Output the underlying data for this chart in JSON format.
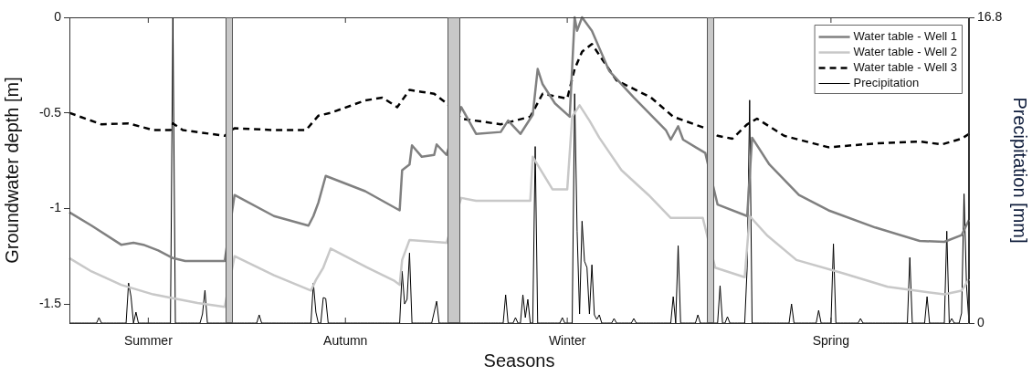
{
  "chart_data": {
    "type": "line",
    "xlabel": "Seasons",
    "ylabel": "Groundwater depth [m]",
    "y2label": "Precipitation [mm]",
    "ylim": [
      -1.6,
      0
    ],
    "yticks": [
      -1.5,
      -1,
      -0.5,
      0
    ],
    "y2lim": [
      0,
      16.8
    ],
    "y2ticks": [
      0,
      16.8
    ],
    "legend": "top right",
    "categories": [
      null,
      null,
      null,
      null,
      null,
      null,
      null,
      null,
      null,
      null,
      null,
      null,
      null,
      null,
      null,
      null,
      null,
      null,
      null,
      null,
      null,
      null,
      null,
      null,
      null,
      null,
      null,
      null,
      null,
      null,
      null,
      null,
      "Summer",
      null,
      null,
      null,
      null,
      null,
      null,
      null,
      null,
      null,
      null,
      null,
      null,
      null,
      null,
      null,
      null,
      null,
      null,
      null,
      null,
      null,
      null,
      null,
      null,
      null,
      null,
      null,
      null,
      null,
      null,
      null,
      null,
      null,
      null,
      null,
      null,
      null,
      null,
      null,
      null,
      null,
      null,
      null,
      null,
      null,
      null,
      null,
      null,
      null,
      null,
      null,
      null,
      null,
      null,
      null,
      null,
      null,
      null,
      null,
      null,
      null,
      null,
      null,
      null,
      null,
      null,
      null,
      null,
      null,
      null,
      null,
      null,
      null,
      null,
      null,
      null,
      null,
      null,
      null,
      "Autumn",
      null,
      null,
      null,
      null,
      null,
      null,
      null,
      null,
      null,
      null,
      null,
      null,
      null,
      null,
      null,
      null,
      null,
      null,
      null,
      null,
      null,
      null,
      null,
      null,
      null,
      null,
      null,
      null,
      null,
      null,
      null,
      null,
      null,
      null,
      null,
      null,
      null,
      null,
      null,
      null,
      null,
      null,
      null,
      null,
      null,
      null,
      null,
      null,
      null,
      null,
      null,
      null,
      null,
      null,
      null,
      null,
      null,
      null,
      null,
      null,
      null,
      null,
      null,
      null,
      null,
      null,
      null,
      null,
      null,
      null,
      null,
      null,
      null,
      null,
      null,
      null,
      null,
      null,
      null,
      null,
      null,
      null,
      null,
      null,
      null,
      null,
      null,
      null,
      null,
      "Winter",
      null,
      null,
      null,
      null,
      null,
      null,
      null,
      null,
      null,
      null,
      null,
      null,
      null,
      null,
      null,
      null,
      null,
      null,
      null,
      null,
      null,
      null,
      null,
      null,
      null,
      null,
      null,
      null,
      null,
      null,
      null,
      null,
      null,
      null,
      null,
      null,
      null,
      null,
      null,
      null,
      null,
      null,
      null,
      null,
      null,
      null,
      null,
      null,
      null,
      null,
      null,
      null,
      null,
      null,
      null,
      null,
      null,
      null,
      null,
      null,
      null,
      null,
      null,
      null,
      null,
      null,
      null,
      null,
      null,
      null,
      null,
      null,
      null,
      null,
      null,
      null,
      null,
      null,
      null,
      null,
      null,
      null,
      null,
      null,
      null,
      null,
      null,
      null,
      null,
      null,
      null,
      null,
      null,
      null,
      null,
      null,
      null,
      null,
      null,
      null,
      null,
      null,
      null,
      null,
      null,
      null,
      "Spring",
      null,
      null,
      null,
      null,
      null,
      null,
      null,
      null,
      null,
      null,
      null,
      null,
      null,
      null,
      null,
      null,
      null,
      null,
      null,
      null,
      null,
      null,
      null,
      null,
      null,
      null,
      null,
      null,
      null,
      null,
      null,
      null,
      null,
      null,
      null,
      null,
      null,
      null,
      null,
      null,
      null,
      null,
      null,
      null,
      null,
      null,
      null,
      null,
      null,
      null,
      null,
      null,
      null,
      null,
      null,
      null
    ],
    "series": [
      {
        "name": "Water table - Well 1",
        "color": "#808080",
        "values": [
          -1.02,
          null,
          null,
          null,
          null,
          null,
          null,
          null,
          null,
          -1.09,
          null,
          null,
          null,
          null,
          null,
          null,
          null,
          null,
          null,
          null,
          null,
          -1.19,
          null,
          null,
          null,
          null,
          -1.18,
          null,
          null,
          null,
          -1.19,
          null,
          null,
          null,
          null,
          null,
          -1.22,
          null,
          null,
          null,
          null,
          null,
          -1.26,
          null,
          null,
          null,
          null,
          -1.275,
          null,
          null,
          null,
          null,
          null,
          null,
          null,
          null,
          null,
          null,
          null,
          null,
          null,
          null,
          null,
          -1.275,
          null,
          null,
          null,
          -0.93,
          null,
          null,
          null,
          null,
          null,
          null,
          null,
          null,
          null,
          null,
          null,
          null,
          null,
          null,
          null,
          -1.04,
          null,
          null,
          null,
          null,
          null,
          null,
          null,
          null,
          null,
          null,
          null,
          null,
          null,
          -1.09,
          null,
          -1.04,
          null,
          -0.97,
          null,
          null,
          -0.83,
          null,
          null,
          null,
          null,
          null,
          null,
          null,
          null,
          null,
          null,
          null,
          null,
          null,
          null,
          null,
          -0.91,
          null,
          null,
          null,
          null,
          null,
          null,
          null,
          null,
          null,
          null,
          null,
          null,
          null,
          -1.01,
          -0.8,
          null,
          null,
          -0.77,
          -0.67,
          null,
          null,
          null,
          -0.73,
          null,
          null,
          null,
          null,
          -0.72,
          -0.665,
          null,
          null,
          null,
          -0.72,
          null,
          null,
          null,
          null,
          null,
          -0.47,
          null,
          null,
          null,
          null,
          null,
          -0.61,
          null,
          null,
          null,
          null,
          null,
          null,
          null,
          null,
          null,
          -0.6,
          null,
          null,
          -0.54,
          null,
          null,
          null,
          null,
          -0.61,
          null,
          null,
          null,
          null,
          -0.51,
          null,
          -0.27,
          null,
          -0.35,
          null,
          null,
          null,
          null,
          -0.45,
          null,
          null,
          null,
          null,
          null,
          -0.52,
          null,
          0,
          -0.07,
          null,
          0,
          null,
          null,
          null,
          -0.07,
          null,
          null,
          null,
          null,
          null,
          null,
          -0.28,
          null,
          null,
          null,
          null,
          null,
          null,
          null,
          null,
          null,
          -0.42,
          null,
          null,
          null,
          null,
          null,
          null,
          null,
          null,
          null,
          null,
          null,
          null,
          -0.59,
          null,
          -0.64,
          null,
          null,
          -0.57,
          null,
          -0.64,
          null,
          null,
          null,
          null,
          null,
          null,
          null,
          null,
          -0.71,
          null,
          null,
          null,
          null,
          -0.98,
          null,
          null,
          null,
          null,
          null,
          null,
          null,
          null,
          null,
          null,
          null,
          -1.04,
          null,
          -0.63,
          null,
          null,
          null,
          null,
          null,
          null,
          -0.77,
          null,
          null,
          null,
          null,
          null,
          null,
          null,
          null,
          null,
          null,
          null,
          -0.93,
          null,
          null,
          null,
          null,
          null,
          null,
          null,
          null,
          null,
          null,
          null,
          -1.01,
          null,
          null,
          null,
          null,
          null,
          null,
          null,
          null,
          null,
          null,
          null,
          null,
          null,
          null,
          null,
          null,
          null,
          null,
          -1.1,
          null,
          null,
          null,
          null,
          null,
          null,
          null,
          null,
          null,
          null,
          null,
          null,
          null,
          null,
          null,
          null,
          null,
          -1.17,
          null,
          null,
          null,
          null,
          null,
          null,
          null,
          null,
          null,
          -1.175,
          null,
          null,
          null,
          null,
          null,
          null,
          -1.14,
          null,
          null,
          -1.06
        ]
      },
      {
        "name": "Water table - Well 2",
        "color": "#c8c8c8",
        "values": [
          -1.26,
          null,
          null,
          null,
          null,
          null,
          null,
          null,
          null,
          -1.33,
          null,
          null,
          null,
          null,
          null,
          null,
          null,
          null,
          null,
          null,
          null,
          -1.4,
          null,
          null,
          null,
          null,
          null,
          null,
          null,
          null,
          null,
          null,
          null,
          null,
          -1.45,
          null,
          null,
          null,
          null,
          null,
          null,
          null,
          -1.47,
          null,
          null,
          null,
          null,
          null,
          null,
          null,
          null,
          null,
          -1.495,
          null,
          null,
          null,
          null,
          null,
          null,
          null,
          null,
          null,
          null,
          -1.515,
          null,
          null,
          null,
          -1.25,
          null,
          null,
          null,
          null,
          null,
          null,
          null,
          null,
          null,
          null,
          null,
          null,
          null,
          null,
          null,
          -1.35,
          null,
          null,
          null,
          null,
          null,
          null,
          null,
          null,
          null,
          null,
          null,
          null,
          null,
          null,
          -1.43,
          null,
          -1.375,
          null,
          null,
          -1.31,
          null,
          null,
          -1.21,
          null,
          null,
          null,
          null,
          null,
          null,
          null,
          null,
          null,
          null,
          null,
          null,
          null,
          null,
          -1.31,
          null,
          null,
          null,
          null,
          null,
          null,
          null,
          null,
          null,
          null,
          -1.38,
          null,
          -1.4,
          -1.27,
          null,
          null,
          -1.165,
          null,
          null,
          null,
          null,
          null,
          null,
          null,
          null,
          null,
          -1.175,
          null,
          null,
          null,
          null,
          -1.18,
          null,
          null,
          null,
          null,
          null,
          -0.945,
          null,
          null,
          null,
          null,
          null,
          -0.96,
          null,
          null,
          null,
          null,
          null,
          null,
          null,
          null,
          null,
          null,
          null,
          null,
          null,
          null,
          null,
          null,
          null,
          null,
          null,
          null,
          null,
          -0.96,
          -0.73,
          null,
          null,
          null,
          null,
          null,
          null,
          null,
          -0.9,
          null,
          null,
          null,
          null,
          null,
          -0.9,
          null,
          -0.52,
          null,
          null,
          -0.46,
          null,
          null,
          null,
          -0.54,
          null,
          null,
          null,
          -0.63,
          null,
          null,
          null,
          null,
          null,
          null,
          null,
          null,
          -0.8,
          null,
          null,
          null,
          null,
          null,
          null,
          null,
          null,
          null,
          null,
          -0.93,
          null,
          null,
          null,
          null,
          null,
          null,
          null,
          null,
          -1.05,
          null,
          null,
          null,
          null,
          null,
          null,
          null,
          null,
          null,
          null,
          null,
          null,
          -1.05,
          null,
          null,
          null,
          null,
          -1.31,
          null,
          null,
          null,
          null,
          null,
          null,
          null,
          null,
          null,
          null,
          null,
          -1.36,
          null,
          -1.04,
          null,
          null,
          null,
          null,
          null,
          null,
          -1.14,
          null,
          null,
          null,
          null,
          null,
          null,
          null,
          null,
          null,
          null,
          null,
          -1.27,
          null,
          null,
          null,
          null,
          null,
          null,
          null,
          null,
          null,
          null,
          null,
          null,
          null,
          null,
          null,
          null,
          null,
          null,
          -1.34,
          null,
          null,
          null,
          null,
          null,
          null,
          null,
          null,
          null,
          null,
          null,
          null,
          null,
          null,
          null,
          null,
          null,
          -1.41,
          null,
          null,
          null,
          null,
          null,
          null,
          null,
          null,
          null,
          null,
          null,
          null,
          null,
          null,
          null,
          null,
          null,
          null,
          null,
          null,
          null,
          null,
          -1.45,
          null,
          null,
          null,
          null,
          null,
          null,
          -1.43,
          null,
          null,
          -1.37
        ]
      },
      {
        "name": "Water table - Well 3",
        "color": "#000000",
        "line_style": "dashed",
        "values": [
          -0.5,
          null,
          null,
          null,
          null,
          null,
          null,
          null,
          null,
          null,
          null,
          null,
          null,
          -0.56,
          null,
          null,
          null,
          null,
          null,
          null,
          null,
          null,
          null,
          null,
          -0.555,
          null,
          null,
          null,
          null,
          null,
          null,
          null,
          null,
          null,
          -0.59,
          null,
          null,
          null,
          null,
          null,
          null,
          -0.59,
          -0.555,
          null,
          null,
          null,
          -0.59,
          null,
          null,
          null,
          null,
          null,
          null,
          null,
          null,
          null,
          null,
          null,
          null,
          null,
          null,
          null,
          null,
          -0.62,
          null,
          null,
          null,
          -0.58,
          null,
          null,
          null,
          null,
          null,
          null,
          null,
          null,
          null,
          null,
          null,
          null,
          null,
          null,
          null,
          -0.59,
          null,
          null,
          null,
          null,
          null,
          null,
          null,
          null,
          null,
          null,
          null,
          null,
          -0.59,
          null,
          null,
          null,
          null,
          -0.515,
          null,
          null,
          null,
          null,
          -0.5,
          null,
          null,
          null,
          null,
          null,
          null,
          null,
          null,
          null,
          null,
          null,
          null,
          null,
          -0.435,
          null,
          null,
          null,
          null,
          null,
          null,
          -0.42,
          null,
          null,
          null,
          null,
          null,
          -0.47,
          null,
          null,
          null,
          null,
          -0.38,
          null,
          null,
          null,
          null,
          -0.39,
          null,
          null,
          null,
          null,
          -0.4,
          null,
          null,
          null,
          null,
          -0.45,
          null,
          null,
          null,
          null,
          null,
          -0.53,
          null,
          null,
          null,
          null,
          null,
          null,
          null,
          -0.545,
          null,
          null,
          null,
          null,
          null,
          null,
          null,
          -0.56,
          null,
          null,
          null,
          null,
          null,
          null,
          null,
          null,
          null,
          null,
          null,
          -0.52,
          null,
          null,
          null,
          null,
          -0.4,
          null,
          null,
          null,
          null,
          null,
          null,
          null,
          null,
          null,
          -0.425,
          null,
          null,
          -0.27,
          null,
          null,
          -0.18,
          null,
          null,
          null,
          -0.14,
          null,
          null,
          null,
          null,
          null,
          null,
          null,
          null,
          null,
          -0.33,
          null,
          null,
          null,
          null,
          null,
          null,
          null,
          null,
          null,
          null,
          null,
          null,
          null,
          -0.42,
          null,
          null,
          null,
          null,
          null,
          null,
          null,
          null,
          -0.52,
          null,
          null,
          null,
          null,
          null,
          null,
          null,
          null,
          null,
          null,
          null,
          null,
          -0.58,
          null,
          null,
          null,
          null,
          -0.62,
          null,
          null,
          null,
          null,
          null,
          -0.635,
          null,
          null,
          null,
          null,
          null,
          -0.56,
          null,
          null,
          null,
          -0.53,
          null,
          null,
          null,
          null,
          null,
          null,
          null,
          null,
          null,
          null,
          -0.62,
          null,
          null,
          null,
          null,
          null,
          null,
          null,
          null,
          null,
          null,
          null,
          null,
          null,
          null,
          null,
          null,
          null,
          -0.68,
          null,
          null,
          null,
          null,
          null,
          null,
          null,
          null,
          null,
          null,
          null,
          null,
          null,
          null,
          null,
          null,
          null,
          null,
          -0.66,
          null,
          null,
          null,
          null,
          null,
          null,
          null,
          null,
          null,
          null,
          null,
          null,
          null,
          null,
          null,
          null,
          null,
          -0.65,
          null,
          null,
          null,
          null,
          null,
          null,
          null,
          null,
          -0.665,
          null,
          null,
          null,
          null,
          null,
          null,
          null,
          -0.635,
          null,
          null,
          -0.61
        ]
      },
      {
        "name": "Precipitation",
        "color": "#000000",
        "axis": "y2",
        "values": [
          0,
          0,
          0,
          0,
          0,
          0,
          0,
          0,
          0,
          0,
          0,
          0,
          0.3,
          0,
          0,
          0,
          0,
          0,
          0,
          0,
          0,
          0,
          0,
          0,
          2.2,
          1.45,
          0,
          0.6,
          0,
          0,
          0,
          0,
          0,
          0,
          0,
          0,
          0,
          0,
          0,
          0,
          0,
          0,
          16.8,
          0,
          0,
          0,
          0,
          0,
          0,
          0,
          0,
          0,
          0,
          0,
          0.5,
          1.8,
          0,
          0,
          0,
          0,
          0,
          0,
          0,
          0,
          null,
          null,
          null,
          0,
          0,
          0,
          0,
          0,
          0,
          0,
          0,
          0,
          0,
          0.45,
          0,
          0,
          0,
          0,
          0,
          0,
          0,
          0,
          0,
          0,
          0,
          0,
          0,
          0,
          0,
          0,
          0,
          0,
          0,
          0,
          0,
          2.2,
          0.6,
          0,
          0,
          1.4,
          1.35,
          0,
          0,
          0,
          0,
          0,
          0,
          0,
          0,
          0,
          0,
          0,
          0,
          0,
          0,
          0,
          0,
          0,
          0,
          0,
          0,
          0,
          0,
          0,
          0,
          0,
          0,
          0,
          0,
          0,
          0,
          2.85,
          1.05,
          1.3,
          3.85,
          0,
          0,
          0,
          0,
          0,
          0,
          0,
          0,
          0,
          0.6,
          1.2,
          0,
          0,
          0,
          0,
          null,
          null,
          null,
          null,
          null,
          0,
          0,
          0,
          0,
          0,
          0,
          0,
          0,
          0,
          0,
          0,
          0,
          0,
          0,
          0,
          0,
          0,
          0,
          1.55,
          0,
          0,
          0,
          0.3,
          0,
          0,
          1.55,
          0.3,
          1.3,
          0,
          0,
          9.7,
          0,
          0,
          0,
          0,
          0,
          0,
          0,
          0,
          0,
          0,
          0.3,
          0,
          0,
          0,
          0,
          12.6,
          5.05,
          0.5,
          5.6,
          3.4,
          3.05,
          0.5,
          3.2,
          0.45,
          0.2,
          0.45,
          0,
          0,
          0,
          0,
          0,
          0.25,
          0,
          0,
          0,
          0,
          0,
          0,
          0,
          0.25,
          0,
          0,
          0,
          0,
          0,
          0,
          0,
          0,
          0,
          0,
          0,
          0,
          0,
          0,
          0,
          1.45,
          0,
          4.25,
          0,
          0,
          0,
          0,
          0,
          0,
          0,
          0.45,
          0,
          0,
          0,
          null,
          null,
          null,
          null,
          0,
          2.05,
          0,
          0,
          0.35,
          0,
          0,
          0,
          0,
          0,
          0,
          0,
          3.05,
          12.25,
          0,
          0,
          0,
          0,
          0,
          0,
          0,
          0,
          0,
          0,
          0,
          0,
          0,
          0,
          0,
          0,
          1.05,
          0,
          0,
          0,
          0,
          0,
          0,
          0,
          0,
          0,
          0,
          0.7,
          0,
          0,
          0,
          0,
          0,
          4.35,
          0,
          0,
          0,
          0,
          0,
          0,
          0,
          0,
          0,
          0,
          0.25,
          0,
          0,
          0,
          0,
          0,
          0,
          0,
          0,
          0,
          0,
          0,
          0,
          0,
          0,
          0,
          0,
          0,
          0,
          0,
          3.6,
          0,
          0,
          0,
          0,
          0,
          0,
          1.45,
          0,
          0,
          0,
          0,
          0,
          0,
          0,
          5.05,
          0,
          0.25,
          0,
          0,
          0,
          0.55,
          7.1,
          2.05,
          0
        ]
      }
    ]
  }
}
